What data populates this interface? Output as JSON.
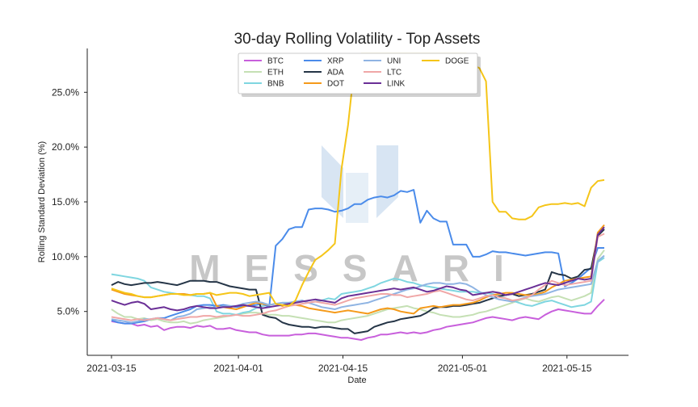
{
  "chart_data": {
    "type": "line",
    "title": "30-day Rolling Volatility - Top Assets",
    "xlabel": "Date",
    "ylabel": "Rolling Standard Deviation (%)",
    "x_start": "2021-03-15",
    "x_end": "2021-05-20",
    "ylim": [
      1.0,
      29.0
    ],
    "yticks": [
      5,
      10,
      15,
      20,
      25
    ],
    "ytick_labels": [
      "5.0%",
      "10.0%",
      "15.0%",
      "20.0%",
      "25.0%"
    ],
    "xticks": [
      "2021-03-15",
      "2021-04-01",
      "2021-04-15",
      "2021-05-01",
      "2021-05-15"
    ],
    "grid": false,
    "legend_position": "top-center",
    "watermark": "MESSARI",
    "series": [
      {
        "name": "BTC",
        "color": "#c85fdc",
        "values": [
          4.1,
          4.0,
          3.9,
          3.9,
          3.7,
          3.8,
          3.6,
          3.7,
          3.3,
          3.5,
          3.6,
          3.6,
          3.5,
          3.7,
          3.6,
          3.7,
          3.4,
          3.4,
          3.5,
          3.3,
          3.2,
          3.1,
          3.1,
          2.9,
          2.8,
          2.8,
          2.8,
          2.8,
          2.9,
          2.9,
          3.0,
          3.0,
          2.9,
          2.8,
          2.7,
          2.6,
          2.6,
          2.5,
          2.4,
          2.6,
          2.7,
          2.9,
          2.9,
          3.0,
          3.1,
          3.0,
          3.1,
          3.0,
          3.1,
          3.3,
          3.4,
          3.6,
          3.7,
          3.8,
          3.9,
          4.0,
          4.2,
          4.4,
          4.5,
          4.4,
          4.3,
          4.2,
          4.4,
          4.5,
          4.4,
          4.3,
          4.7,
          5.0,
          5.2,
          5.1,
          5.0,
          4.9,
          4.8,
          4.8,
          5.5,
          6.1
        ]
      },
      {
        "name": "ETH",
        "color": "#c5e0b4",
        "values": [
          5.2,
          4.8,
          4.5,
          4.5,
          4.3,
          4.4,
          4.2,
          4.3,
          4.1,
          4.0,
          4.0,
          4.1,
          3.9,
          4.0,
          4.2,
          4.3,
          4.4,
          4.5,
          4.6,
          4.7,
          4.8,
          4.9,
          4.9,
          4.8,
          4.7,
          4.7,
          4.6,
          4.6,
          4.5,
          4.4,
          4.3,
          4.2,
          4.1,
          4.0,
          4.0,
          4.2,
          4.3,
          4.4,
          4.5,
          4.6,
          4.8,
          5.0,
          5.2,
          5.3,
          5.4,
          5.5,
          5.3,
          5.2,
          5.0,
          4.9,
          4.7,
          4.6,
          4.5,
          4.5,
          4.6,
          4.7,
          4.9,
          5.0,
          5.2,
          5.4,
          5.6,
          5.8,
          6.0,
          6.2,
          6.0,
          5.9,
          6.1,
          6.3,
          6.4,
          6.2,
          6.0,
          6.2,
          6.4,
          6.7,
          9.8,
          10.6
        ]
      },
      {
        "name": "BNB",
        "color": "#7fd6e0",
        "values": [
          8.4,
          8.3,
          8.2,
          8.1,
          8.0,
          7.8,
          7.2,
          7.0,
          6.8,
          6.7,
          6.6,
          6.6,
          6.5,
          6.4,
          6.4,
          6.2,
          5.0,
          4.8,
          4.8,
          4.7,
          4.9,
          5.0,
          5.3,
          5.5,
          5.6,
          5.7,
          5.8,
          5.8,
          5.9,
          6.0,
          5.8,
          5.9,
          6.0,
          6.2,
          6.1,
          6.6,
          6.7,
          6.8,
          6.9,
          7.1,
          7.3,
          7.6,
          7.8,
          8.0,
          7.9,
          7.7,
          7.6,
          7.4,
          7.3,
          7.2,
          7.1,
          7.0,
          6.9,
          6.8,
          6.8,
          6.8,
          6.7,
          6.7,
          6.6,
          6.4,
          6.2,
          6.0,
          5.8,
          5.6,
          5.5,
          5.7,
          5.9,
          6.0,
          5.8,
          5.6,
          5.4,
          5.5,
          5.6,
          5.9,
          9.5,
          9.9
        ]
      },
      {
        "name": "XRP",
        "color": "#4a8bea",
        "values": [
          4.2,
          4.0,
          3.9,
          3.9,
          4.0,
          4.1,
          4.3,
          4.4,
          4.4,
          4.6,
          4.8,
          5.0,
          5.2,
          5.5,
          5.6,
          5.6,
          5.5,
          5.6,
          5.5,
          5.4,
          5.5,
          5.5,
          5.6,
          5.7,
          5.4,
          11.0,
          11.6,
          12.5,
          12.7,
          12.7,
          14.3,
          14.4,
          14.4,
          14.3,
          14.1,
          14.2,
          14.4,
          14.8,
          14.8,
          15.2,
          15.4,
          15.5,
          15.4,
          15.6,
          16.0,
          15.9,
          16.1,
          13.1,
          14.2,
          13.5,
          13.2,
          13.2,
          11.1,
          11.1,
          11.1,
          10.0,
          10.0,
          10.2,
          10.5,
          10.4,
          10.4,
          10.3,
          10.2,
          10.1,
          10.2,
          10.3,
          10.4,
          10.4,
          10.3,
          7.3,
          7.6,
          8.0,
          8.5,
          9.0,
          10.8,
          10.8
        ]
      },
      {
        "name": "ADA",
        "color": "#253547",
        "values": [
          7.4,
          7.7,
          7.5,
          7.4,
          7.5,
          7.6,
          7.6,
          7.7,
          7.6,
          7.5,
          7.4,
          7.6,
          7.8,
          7.8,
          7.8,
          7.7,
          7.7,
          7.5,
          7.3,
          7.2,
          7.1,
          7.0,
          7.0,
          4.7,
          4.5,
          4.4,
          4.0,
          3.8,
          3.7,
          3.6,
          3.6,
          3.5,
          3.6,
          3.6,
          3.5,
          3.4,
          3.4,
          3.0,
          3.1,
          3.2,
          3.6,
          3.8,
          4.0,
          4.1,
          4.3,
          4.4,
          4.5,
          4.6,
          4.9,
          5.3,
          5.4,
          5.4,
          5.5,
          5.5,
          5.6,
          5.7,
          5.8,
          6.0,
          6.2,
          6.4,
          6.5,
          6.6,
          6.4,
          6.5,
          6.6,
          6.8,
          7.0,
          8.6,
          8.4,
          8.3,
          8.0,
          8.2,
          8.8,
          8.9,
          11.9,
          12.5
        ]
      },
      {
        "name": "DOT",
        "color": "#f59a1a",
        "values": [
          7.0,
          6.8,
          6.6,
          6.5,
          6.4,
          6.3,
          6.3,
          6.4,
          6.5,
          6.6,
          6.6,
          6.6,
          6.5,
          6.6,
          6.6,
          6.7,
          5.5,
          5.4,
          5.3,
          5.2,
          5.4,
          5.6,
          5.8,
          5.7,
          5.6,
          5.7,
          5.5,
          5.7,
          5.6,
          5.5,
          5.3,
          5.2,
          5.1,
          5.0,
          4.9,
          5.0,
          5.1,
          5.0,
          4.9,
          4.8,
          5.0,
          5.2,
          5.3,
          5.2,
          5.0,
          4.9,
          4.8,
          5.3,
          5.4,
          5.5,
          5.4,
          5.5,
          5.6,
          5.6,
          5.7,
          5.8,
          6.0,
          6.3,
          6.5,
          6.6,
          6.7,
          6.7,
          6.6,
          6.5,
          6.5,
          6.6,
          6.8,
          7.2,
          7.5,
          7.8,
          7.9,
          8.0,
          8.1,
          8.2,
          12.2,
          12.9
        ]
      },
      {
        "name": "UNI",
        "color": "#8fb4e3",
        "values": [
          4.3,
          4.2,
          4.1,
          4.0,
          4.1,
          4.3,
          4.3,
          4.4,
          4.3,
          4.2,
          4.5,
          4.6,
          4.8,
          5.2,
          5.3,
          5.4,
          5.3,
          5.5,
          5.5,
          5.5,
          5.7,
          5.8,
          5.9,
          5.8,
          5.6,
          5.7,
          5.8,
          5.8,
          5.9,
          6.0,
          5.8,
          5.6,
          5.4,
          5.3,
          5.2,
          5.4,
          5.5,
          5.6,
          5.7,
          5.8,
          6.0,
          6.2,
          6.4,
          6.6,
          6.8,
          7.0,
          7.1,
          7.3,
          7.5,
          7.6,
          7.6,
          7.5,
          7.5,
          7.6,
          7.5,
          7.2,
          6.8,
          6.5,
          6.3,
          6.1,
          6.0,
          5.9,
          6.1,
          6.3,
          6.4,
          6.5,
          6.6,
          6.8,
          7.0,
          7.1,
          7.2,
          7.3,
          7.4,
          7.5,
          9.6,
          10.1
        ]
      },
      {
        "name": "LTC",
        "color": "#f0a7a7",
        "values": [
          4.5,
          4.4,
          4.3,
          4.2,
          4.3,
          4.2,
          4.3,
          4.4,
          4.3,
          4.2,
          4.3,
          4.4,
          4.5,
          4.5,
          4.6,
          4.6,
          4.5,
          4.6,
          4.6,
          4.7,
          4.6,
          4.6,
          4.7,
          4.8,
          5.0,
          5.1,
          5.3,
          5.5,
          5.6,
          5.7,
          5.8,
          5.9,
          5.8,
          5.7,
          5.6,
          5.8,
          6.0,
          6.2,
          6.3,
          6.4,
          6.5,
          6.6,
          6.6,
          6.5,
          6.5,
          6.3,
          6.4,
          6.5,
          6.6,
          6.8,
          6.9,
          6.7,
          6.5,
          6.3,
          6.1,
          6.0,
          6.2,
          6.4,
          6.5,
          6.3,
          6.2,
          6.0,
          6.1,
          6.2,
          6.5,
          7.0,
          7.4,
          7.8,
          7.6,
          7.4,
          7.5,
          7.6,
          7.7,
          7.8,
          11.8,
          12.1
        ]
      },
      {
        "name": "LINK",
        "color": "#6a2f96",
        "values": [
          6.0,
          5.8,
          5.6,
          5.8,
          5.9,
          5.7,
          5.2,
          5.3,
          5.4,
          5.2,
          5.1,
          5.2,
          5.4,
          5.5,
          5.4,
          5.3,
          5.3,
          5.4,
          5.4,
          5.5,
          5.6,
          5.5,
          5.4,
          5.3,
          5.4,
          5.5,
          5.6,
          5.7,
          5.8,
          5.9,
          6.0,
          6.1,
          6.0,
          5.9,
          5.8,
          6.2,
          6.4,
          6.5,
          6.6,
          6.7,
          6.8,
          6.9,
          7.0,
          7.1,
          7.0,
          7.1,
          7.2,
          7.0,
          6.8,
          6.9,
          7.1,
          7.3,
          7.2,
          7.0,
          6.9,
          6.5,
          6.6,
          6.7,
          6.8,
          6.7,
          6.5,
          6.6,
          6.8,
          7.0,
          7.2,
          7.4,
          7.6,
          7.5,
          7.4,
          7.6,
          7.8,
          8.0,
          7.9,
          8.0,
          12.0,
          12.7
        ]
      },
      {
        "name": "DOGE",
        "color": "#f5c518",
        "values": [
          7.1,
          6.9,
          6.7,
          6.6,
          6.4,
          6.3,
          6.3,
          6.4,
          6.5,
          6.6,
          6.6,
          6.5,
          6.5,
          6.6,
          6.6,
          6.7,
          6.5,
          6.6,
          6.7,
          6.7,
          6.6,
          6.4,
          6.5,
          6.6,
          6.7,
          5.7,
          5.6,
          5.5,
          6.0,
          7.4,
          8.6,
          9.7,
          10.1,
          10.6,
          11.2,
          18.0,
          22.0,
          27.5,
          28.5,
          28.5,
          28.5,
          28.5,
          28.5,
          28.5,
          28.5,
          28.5,
          28.5,
          28.5,
          28.5,
          28.5,
          28.5,
          28.5,
          28.5,
          28.5,
          28.5,
          27.5,
          27.2,
          26.0,
          15.0,
          14.1,
          14.1,
          13.5,
          13.4,
          13.4,
          13.7,
          14.5,
          14.7,
          14.8,
          14.8,
          14.9,
          14.8,
          14.9,
          14.6,
          16.3,
          16.9,
          17.0
        ]
      }
    ]
  }
}
